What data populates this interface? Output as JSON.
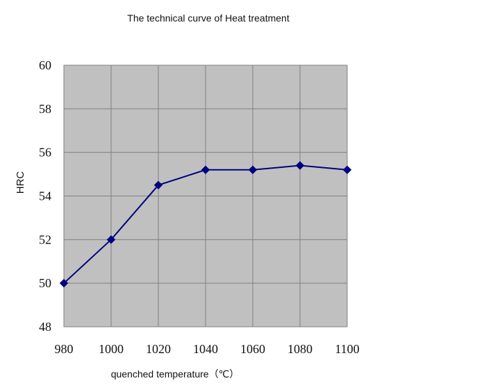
{
  "chart_data": {
    "type": "line",
    "title": "The technical curve of Heat treatment",
    "xlabel": "quenched temperature（℃）",
    "ylabel": "HRC",
    "x": [
      980,
      1000,
      1020,
      1040,
      1060,
      1080,
      1100
    ],
    "series": [
      {
        "values": [
          50,
          52,
          54.5,
          55.2,
          55.2,
          55.4,
          55.2
        ]
      }
    ],
    "xlim": [
      980,
      1100
    ],
    "ylim": [
      48,
      60
    ],
    "x_ticks": [
      "980",
      "1000",
      "1020",
      "1040",
      "1060",
      "1080",
      "1100"
    ],
    "y_ticks": [
      "48",
      "50",
      "52",
      "54",
      "56",
      "58",
      "60"
    ],
    "grid": true,
    "colors": {
      "plot_background": "#c0c0c0",
      "line": "#000080",
      "marker": "#000080",
      "grid": "#7f7f7f"
    },
    "marker": "diamond"
  }
}
